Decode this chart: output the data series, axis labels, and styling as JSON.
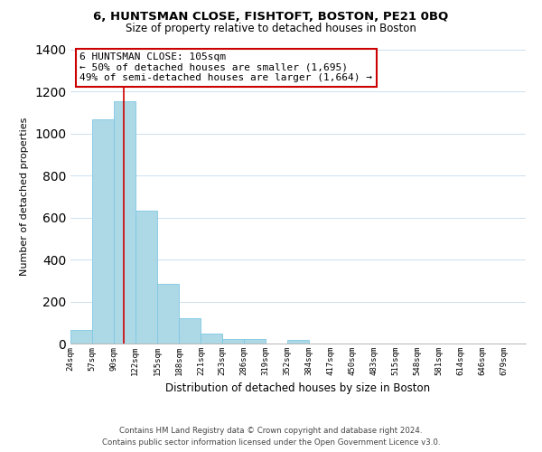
{
  "title": "6, HUNTSMAN CLOSE, FISHTOFT, BOSTON, PE21 0BQ",
  "subtitle": "Size of property relative to detached houses in Boston",
  "xlabel": "Distribution of detached houses by size in Boston",
  "ylabel": "Number of detached properties",
  "bar_color": "#add8e6",
  "bar_edge_color": "#7ec8e3",
  "vline_color": "#cc0000",
  "vline_x": 105,
  "categories": [
    "24sqm",
    "57sqm",
    "90sqm",
    "122sqm",
    "155sqm",
    "188sqm",
    "221sqm",
    "253sqm",
    "286sqm",
    "319sqm",
    "352sqm",
    "384sqm",
    "417sqm",
    "450sqm",
    "483sqm",
    "515sqm",
    "548sqm",
    "581sqm",
    "614sqm",
    "646sqm",
    "679sqm"
  ],
  "bin_edges": [
    24,
    57,
    90,
    122,
    155,
    188,
    221,
    253,
    286,
    319,
    352,
    384,
    417,
    450,
    483,
    515,
    548,
    581,
    614,
    646,
    679,
    712
  ],
  "values": [
    65,
    1070,
    1155,
    635,
    285,
    120,
    48,
    20,
    20,
    0,
    18,
    0,
    0,
    0,
    0,
    0,
    0,
    0,
    0,
    0,
    0
  ],
  "ylim": [
    0,
    1400
  ],
  "yticks": [
    0,
    200,
    400,
    600,
    800,
    1000,
    1200,
    1400
  ],
  "annotation_title": "6 HUNTSMAN CLOSE: 105sqm",
  "annotation_line1": "← 50% of detached houses are smaller (1,695)",
  "annotation_line2": "49% of semi-detached houses are larger (1,664) →",
  "footer_line1": "Contains HM Land Registry data © Crown copyright and database right 2024.",
  "footer_line2": "Contains public sector information licensed under the Open Government Licence v3.0.",
  "background_color": "#ffffff",
  "grid_color": "#cce0ef"
}
